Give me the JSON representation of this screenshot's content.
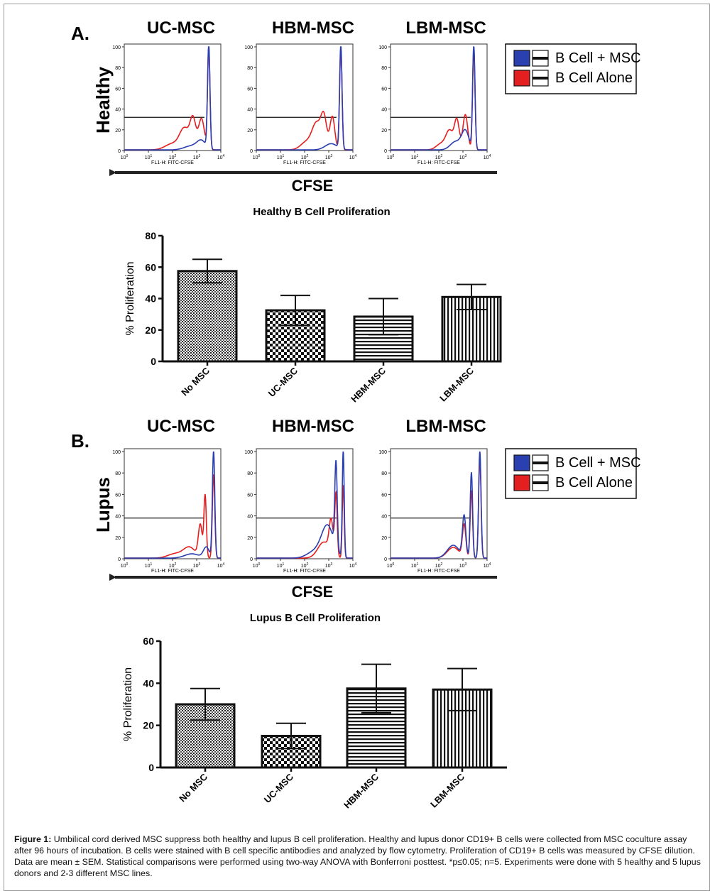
{
  "panelA": {
    "letter": "A.",
    "condition": "Healthy",
    "hist_titles": [
      "UC-MSC",
      "HBM-MSC",
      "LBM-MSC"
    ],
    "y_ticks": [
      "0",
      "20",
      "40",
      "60",
      "80",
      "100"
    ],
    "x_ticks": [
      "10",
      "10",
      "10",
      "10",
      "10"
    ],
    "x_exponents": [
      "0",
      "1",
      "2",
      "3",
      "4"
    ],
    "x_axis_label": "FL1-H: FITC-CFSE",
    "gate_level": 32,
    "arrow_label": "CFSE",
    "legend": [
      {
        "label": "B Cell + MSC",
        "color": "#2a3fb0"
      },
      {
        "label": "B Cell Alone",
        "color": "#e41f1f"
      }
    ]
  },
  "panelB": {
    "letter": "B.",
    "condition": "Lupus",
    "hist_titles": [
      "UC-MSC",
      "HBM-MSC",
      "LBM-MSC"
    ],
    "y_ticks": [
      "0",
      "20",
      "40",
      "60",
      "80",
      "100"
    ],
    "x_ticks": [
      "10",
      "10",
      "10",
      "10",
      "10"
    ],
    "x_exponents": [
      "0",
      "1",
      "2",
      "3",
      "4"
    ],
    "x_axis_label": "FL1-H: FITC-CFSE",
    "gate_level": 38,
    "arrow_label": "CFSE",
    "legend": [
      {
        "label": "B Cell + MSC",
        "color": "#2a3fb0"
      },
      {
        "label": "B Cell Alone",
        "color": "#e41f1f"
      }
    ]
  },
  "chart_data": [
    {
      "type": "bar",
      "title": "Healthy B Cell Proliferation",
      "ylabel": "% Proliferation",
      "xlabel": "",
      "ylim": [
        0,
        80
      ],
      "yticks": [
        0,
        20,
        40,
        60,
        80
      ],
      "categories": [
        "No MSC",
        "UC-MSC",
        "HBM-MSC",
        "LBM-MSC"
      ],
      "values": [
        57.5,
        32.5,
        28.5,
        41
      ],
      "sem": [
        7.5,
        9.5,
        11.5,
        8
      ],
      "patterns": [
        "dots",
        "checker",
        "horizontal",
        "vertical"
      ]
    },
    {
      "type": "bar",
      "title": "Lupus B Cell Proliferation",
      "ylabel": "% Proliferation",
      "xlabel": "",
      "ylim": [
        0,
        60
      ],
      "yticks": [
        0,
        20,
        40,
        60
      ],
      "categories": [
        "No MSC",
        "UC-MSC",
        "HBM-MSC",
        "LBM-MSC"
      ],
      "values": [
        30,
        15,
        37.5,
        37
      ],
      "sem": [
        7.5,
        6,
        11.5,
        10
      ],
      "patterns": [
        "dots",
        "checker",
        "horizontal",
        "vertical"
      ]
    }
  ],
  "caption": {
    "label": "Figure 1:",
    "text": " Umbilical cord derived MSC suppress both healthy and lupus B cell proliferation. Healthy and lupus donor CD19+ B cells were collected from MSC coculture assay after 96 hours of incubation. B cells were stained with B cell specific antibodies and analyzed by flow cytometry. Proliferation of CD19+ B cells was measured by CFSE dilution. Data are mean ± SEM. Statistical comparisons were performed using two-way ANOVA with Bonferroni posttest. *p≤0.05; n=5. Experiments were done with 5 healthy and 5 lupus donors and 2-3 different MSC lines."
  }
}
